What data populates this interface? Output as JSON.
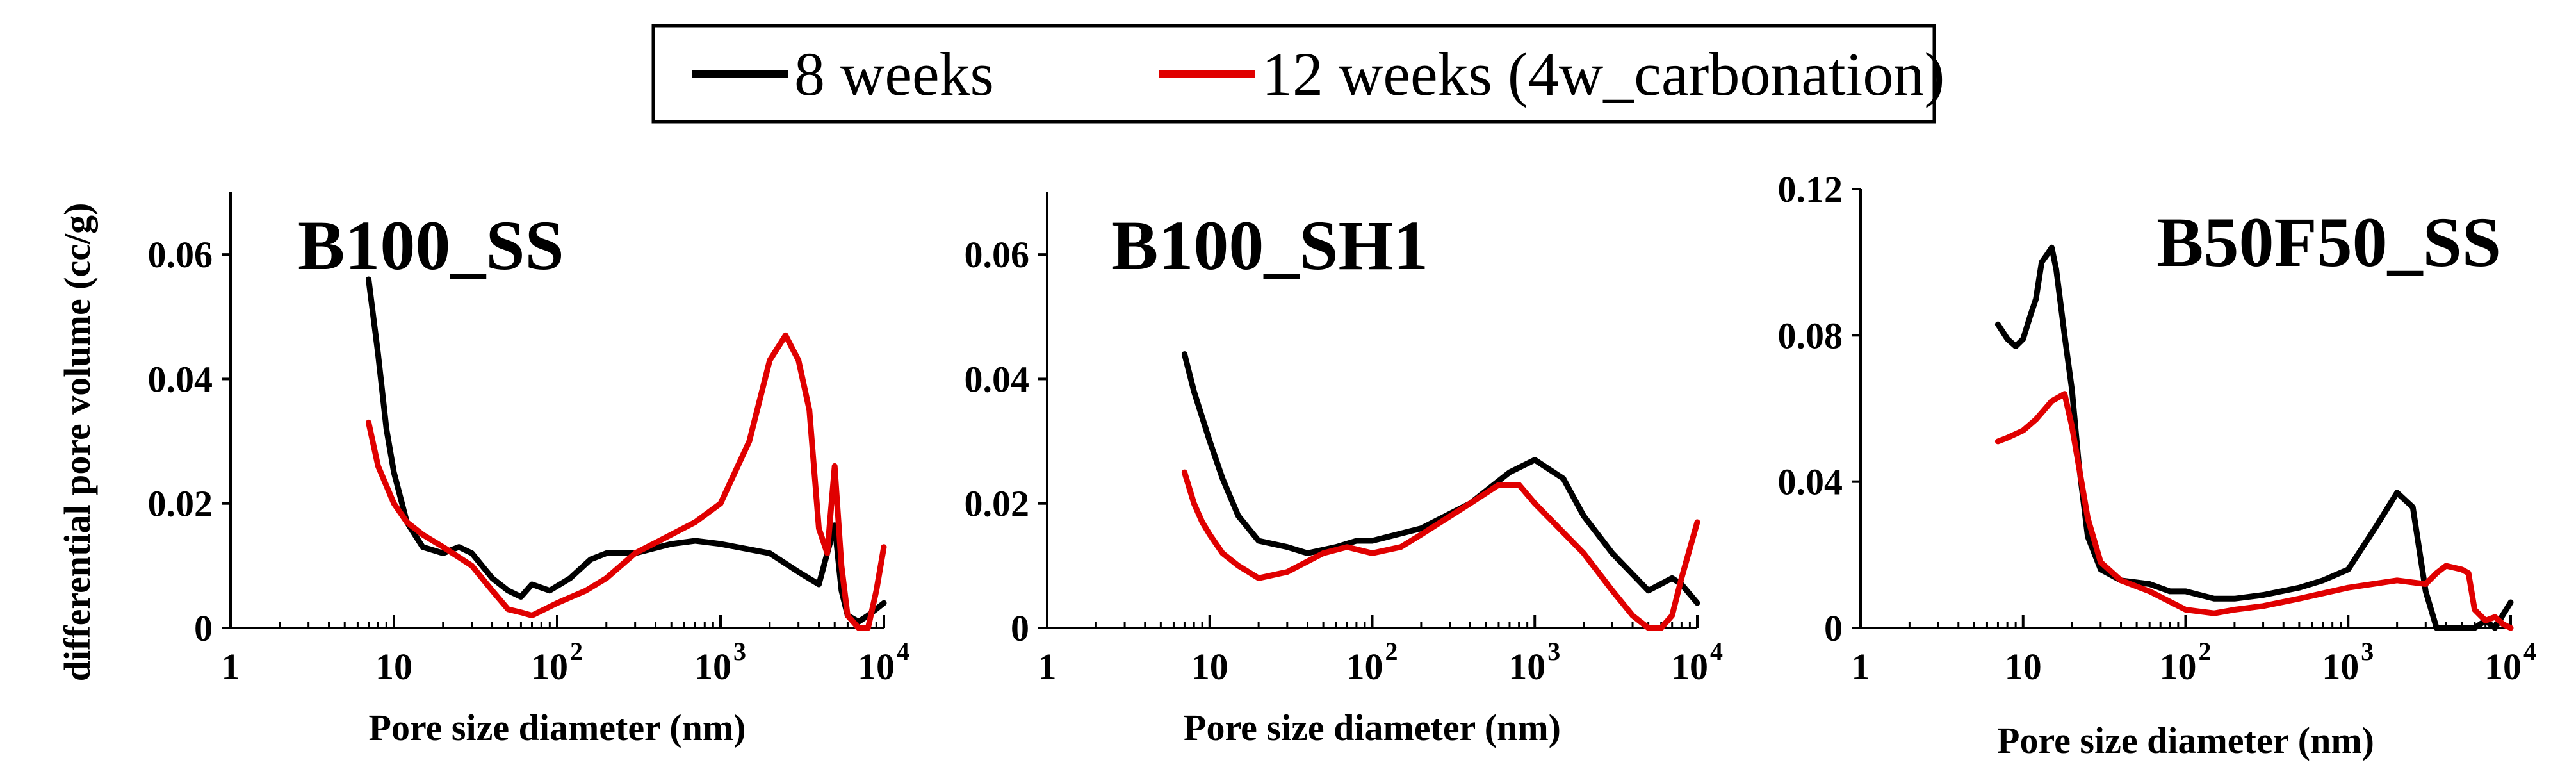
{
  "legend": {
    "entries": [
      {
        "label": "8 weeks",
        "color": "#000000"
      },
      {
        "label": "12 weeks (4w_carbonation)",
        "color": "#e00000"
      }
    ]
  },
  "ylabel": "differential pore volume (cc/g)",
  "chart_data": [
    {
      "type": "line",
      "title": "B100_SS",
      "xlabel": "Pore size diameter (nm)",
      "ylabel": "differential pore volume (cc/g)",
      "xscale": "log",
      "xlim": [
        1,
        10000
      ],
      "ylim": [
        0,
        0.07
      ],
      "xticks": [
        1,
        10,
        100,
        1000,
        10000
      ],
      "xtick_labels": [
        "1",
        "10",
        "10",
        "10",
        "10"
      ],
      "xtick_exponents": [
        "",
        "",
        "2",
        "3",
        "4"
      ],
      "yticks": [
        0,
        0.02,
        0.04,
        0.06
      ],
      "ytick_labels": [
        "0",
        "0.02",
        "0.04",
        "0.06"
      ],
      "series": [
        {
          "name": "8 weeks",
          "color": "#000000",
          "points": [
            [
              7,
              0.056
            ],
            [
              8,
              0.044
            ],
            [
              9,
              0.032
            ],
            [
              10,
              0.025
            ],
            [
              12,
              0.017
            ],
            [
              15,
              0.013
            ],
            [
              20,
              0.012
            ],
            [
              25,
              0.013
            ],
            [
              30,
              0.012
            ],
            [
              40,
              0.008
            ],
            [
              50,
              0.006
            ],
            [
              60,
              0.005
            ],
            [
              70,
              0.007
            ],
            [
              90,
              0.006
            ],
            [
              120,
              0.008
            ],
            [
              160,
              0.011
            ],
            [
              200,
              0.012
            ],
            [
              300,
              0.012
            ],
            [
              500,
              0.0135
            ],
            [
              700,
              0.014
            ],
            [
              1000,
              0.0135
            ],
            [
              2000,
              0.012
            ],
            [
              3000,
              0.009
            ],
            [
              4000,
              0.007
            ],
            [
              4500,
              0.012
            ],
            [
              5000,
              0.0165
            ],
            [
              5500,
              0.006
            ],
            [
              6000,
              0.002
            ],
            [
              7000,
              0.001
            ],
            [
              8000,
              0.002
            ],
            [
              10000,
              0.004
            ]
          ]
        },
        {
          "name": "12 weeks (4w_carbonation)",
          "color": "#e00000",
          "points": [
            [
              7,
              0.033
            ],
            [
              8,
              0.026
            ],
            [
              10,
              0.02
            ],
            [
              12,
              0.017
            ],
            [
              15,
              0.015
            ],
            [
              20,
              0.013
            ],
            [
              30,
              0.01
            ],
            [
              40,
              0.006
            ],
            [
              50,
              0.003
            ],
            [
              60,
              0.0025
            ],
            [
              70,
              0.002
            ],
            [
              100,
              0.004
            ],
            [
              150,
              0.006
            ],
            [
              200,
              0.008
            ],
            [
              300,
              0.012
            ],
            [
              500,
              0.015
            ],
            [
              700,
              0.017
            ],
            [
              1000,
              0.02
            ],
            [
              1500,
              0.03
            ],
            [
              2000,
              0.043
            ],
            [
              2500,
              0.047
            ],
            [
              3000,
              0.043
            ],
            [
              3500,
              0.035
            ],
            [
              4000,
              0.016
            ],
            [
              4500,
              0.012
            ],
            [
              5000,
              0.026
            ],
            [
              5500,
              0.01
            ],
            [
              6000,
              0.002
            ],
            [
              7000,
              0.0
            ],
            [
              8000,
              0.0
            ],
            [
              9000,
              0.006
            ],
            [
              10000,
              0.013
            ]
          ]
        }
      ]
    },
    {
      "type": "line",
      "title": "B100_SH1",
      "xlabel": "Pore size diameter (nm)",
      "xscale": "log",
      "xlim": [
        1,
        10000
      ],
      "ylim": [
        0,
        0.07
      ],
      "xticks": [
        1,
        10,
        100,
        1000,
        10000
      ],
      "xtick_labels": [
        "1",
        "10",
        "10",
        "10",
        "10"
      ],
      "xtick_exponents": [
        "",
        "",
        "2",
        "3",
        "4"
      ],
      "yticks": [
        0,
        0.02,
        0.04,
        0.06
      ],
      "ytick_labels": [
        "0",
        "0.02",
        "0.04",
        "0.06"
      ],
      "series": [
        {
          "name": "8 weeks",
          "color": "#000000",
          "points": [
            [
              7,
              0.044
            ],
            [
              8,
              0.038
            ],
            [
              10,
              0.03
            ],
            [
              12,
              0.024
            ],
            [
              15,
              0.018
            ],
            [
              20,
              0.014
            ],
            [
              30,
              0.013
            ],
            [
              40,
              0.012
            ],
            [
              60,
              0.013
            ],
            [
              80,
              0.014
            ],
            [
              100,
              0.014
            ],
            [
              200,
              0.016
            ],
            [
              400,
              0.02
            ],
            [
              700,
              0.025
            ],
            [
              1000,
              0.027
            ],
            [
              1500,
              0.024
            ],
            [
              2000,
              0.018
            ],
            [
              3000,
              0.012
            ],
            [
              5000,
              0.006
            ],
            [
              7000,
              0.008
            ],
            [
              8000,
              0.007
            ],
            [
              10000,
              0.004
            ]
          ]
        },
        {
          "name": "12 weeks (4w_carbonation)",
          "color": "#e00000",
          "points": [
            [
              7,
              0.025
            ],
            [
              8,
              0.02
            ],
            [
              9,
              0.017
            ],
            [
              10,
              0.015
            ],
            [
              12,
              0.012
            ],
            [
              15,
              0.01
            ],
            [
              20,
              0.008
            ],
            [
              30,
              0.009
            ],
            [
              50,
              0.012
            ],
            [
              70,
              0.013
            ],
            [
              100,
              0.012
            ],
            [
              150,
              0.013
            ],
            [
              200,
              0.015
            ],
            [
              400,
              0.02
            ],
            [
              600,
              0.023
            ],
            [
              800,
              0.023
            ],
            [
              1000,
              0.02
            ],
            [
              2000,
              0.012
            ],
            [
              3000,
              0.006
            ],
            [
              4000,
              0.002
            ],
            [
              5000,
              0.0
            ],
            [
              6000,
              0.0
            ],
            [
              7000,
              0.002
            ],
            [
              8000,
              0.008
            ],
            [
              10000,
              0.017
            ]
          ]
        }
      ]
    },
    {
      "type": "line",
      "title": "B50F50_SS",
      "xlabel": "Pore size diameter (nm)",
      "xscale": "log",
      "xlim": [
        1,
        10000
      ],
      "ylim": [
        0,
        0.12
      ],
      "xticks": [
        1,
        10,
        100,
        1000,
        10000
      ],
      "xtick_labels": [
        "1",
        "10",
        "10",
        "10",
        "10"
      ],
      "xtick_exponents": [
        "",
        "",
        "2",
        "3",
        "4"
      ],
      "yticks": [
        0,
        0.04,
        0.08,
        0.12
      ],
      "ytick_labels": [
        "0",
        "0.04",
        "0.08",
        "0.12"
      ],
      "series": [
        {
          "name": "8 weeks",
          "color": "#000000",
          "points": [
            [
              7,
              0.083
            ],
            [
              8,
              0.079
            ],
            [
              9,
              0.077
            ],
            [
              10,
              0.079
            ],
            [
              11,
              0.085
            ],
            [
              12,
              0.09
            ],
            [
              13,
              0.1
            ],
            [
              14,
              0.102
            ],
            [
              15,
              0.104
            ],
            [
              16,
              0.098
            ],
            [
              18,
              0.08
            ],
            [
              20,
              0.065
            ],
            [
              22,
              0.045
            ],
            [
              25,
              0.025
            ],
            [
              30,
              0.016
            ],
            [
              40,
              0.013
            ],
            [
              60,
              0.012
            ],
            [
              80,
              0.01
            ],
            [
              100,
              0.01
            ],
            [
              150,
              0.008
            ],
            [
              200,
              0.008
            ],
            [
              300,
              0.009
            ],
            [
              500,
              0.011
            ],
            [
              700,
              0.013
            ],
            [
              1000,
              0.016
            ],
            [
              1500,
              0.028
            ],
            [
              2000,
              0.037
            ],
            [
              2500,
              0.033
            ],
            [
              3000,
              0.01
            ],
            [
              3500,
              0.0
            ],
            [
              4000,
              0.0
            ],
            [
              5000,
              0.0
            ],
            [
              6000,
              0.0
            ],
            [
              7000,
              0.002
            ],
            [
              8000,
              0.0
            ],
            [
              10000,
              0.007
            ]
          ]
        },
        {
          "name": "12 weeks (4w_carbonation)",
          "color": "#e00000",
          "points": [
            [
              7,
              0.051
            ],
            [
              8,
              0.052
            ],
            [
              10,
              0.054
            ],
            [
              12,
              0.057
            ],
            [
              15,
              0.062
            ],
            [
              18,
              0.064
            ],
            [
              20,
              0.055
            ],
            [
              25,
              0.03
            ],
            [
              30,
              0.018
            ],
            [
              40,
              0.013
            ],
            [
              60,
              0.01
            ],
            [
              100,
              0.005
            ],
            [
              150,
              0.004
            ],
            [
              200,
              0.005
            ],
            [
              300,
              0.006
            ],
            [
              500,
              0.008
            ],
            [
              1000,
              0.011
            ],
            [
              2000,
              0.013
            ],
            [
              3000,
              0.012
            ],
            [
              3500,
              0.015
            ],
            [
              4000,
              0.017
            ],
            [
              5000,
              0.016
            ],
            [
              5500,
              0.015
            ],
            [
              6000,
              0.005
            ],
            [
              7000,
              0.002
            ],
            [
              8000,
              0.003
            ],
            [
              9000,
              0.001
            ],
            [
              10000,
              0.0
            ]
          ]
        }
      ]
    }
  ]
}
